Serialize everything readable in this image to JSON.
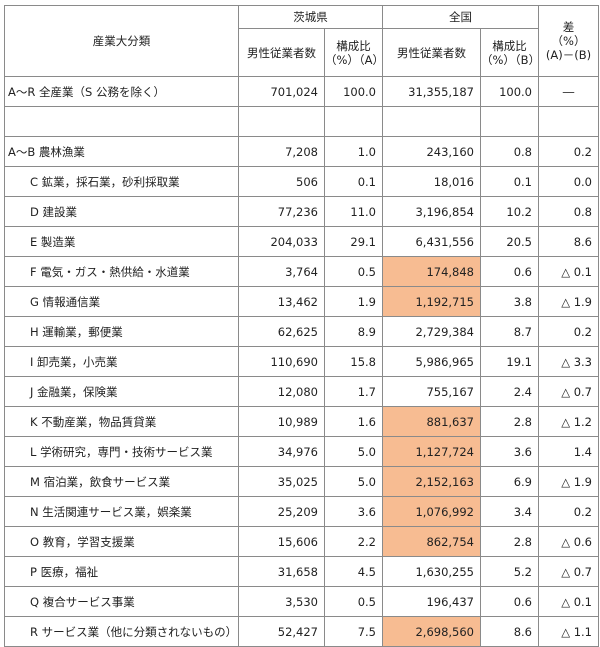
{
  "header": {
    "industry_col": "産業大分類",
    "group_ibaraki": "茨城県",
    "group_national": "全国",
    "diff": "差\n（%）\n(A)－(B)",
    "workers_ibaraki": "男性従業者数",
    "ratio_ibaraki": "構成比\n（%）（A）",
    "workers_national": "男性従業者数",
    "ratio_national": "構成比\n（%）（B）"
  },
  "highlight_color": "#f7bc92",
  "rows": [
    {
      "label": "A～R 全産業（S 公務を除く）",
      "ib_workers": "701,024",
      "ib_ratio": "100.0",
      "nat_workers": "31,355,187",
      "nat_ratio": "100.0",
      "diff": "―",
      "highlight": false
    },
    {
      "label": "A～B 農林漁業",
      "ib_workers": "7,208",
      "ib_ratio": "1.0",
      "nat_workers": "243,160",
      "nat_ratio": "0.8",
      "diff": "0.2",
      "highlight": false
    },
    {
      "label": "C 鉱業，採石業，砂利採取業",
      "ib_workers": "506",
      "ib_ratio": "0.1",
      "nat_workers": "18,016",
      "nat_ratio": "0.1",
      "diff": "0.0",
      "highlight": false
    },
    {
      "label": "D 建設業",
      "ib_workers": "77,236",
      "ib_ratio": "11.0",
      "nat_workers": "3,196,854",
      "nat_ratio": "10.2",
      "diff": "0.8",
      "highlight": false
    },
    {
      "label": "E 製造業",
      "ib_workers": "204,033",
      "ib_ratio": "29.1",
      "nat_workers": "6,431,556",
      "nat_ratio": "20.5",
      "diff": "8.6",
      "highlight": false
    },
    {
      "label": "F 電気・ガス・熱供給・水道業",
      "ib_workers": "3,764",
      "ib_ratio": "0.5",
      "nat_workers": "174,848",
      "nat_ratio": "0.6",
      "diff": "△ 0.1",
      "highlight": true
    },
    {
      "label": "G 情報通信業",
      "ib_workers": "13,462",
      "ib_ratio": "1.9",
      "nat_workers": "1,192,715",
      "nat_ratio": "3.8",
      "diff": "△ 1.9",
      "highlight": true
    },
    {
      "label": "H 運輸業，郵便業",
      "ib_workers": "62,625",
      "ib_ratio": "8.9",
      "nat_workers": "2,729,384",
      "nat_ratio": "8.7",
      "diff": "0.2",
      "highlight": false
    },
    {
      "label": "I 卸売業，小売業",
      "ib_workers": "110,690",
      "ib_ratio": "15.8",
      "nat_workers": "5,986,965",
      "nat_ratio": "19.1",
      "diff": "△ 3.3",
      "highlight": false
    },
    {
      "label": "J 金融業，保険業",
      "ib_workers": "12,080",
      "ib_ratio": "1.7",
      "nat_workers": "755,167",
      "nat_ratio": "2.4",
      "diff": "△ 0.7",
      "highlight": false
    },
    {
      "label": "K 不動産業，物品賃貸業",
      "ib_workers": "10,989",
      "ib_ratio": "1.6",
      "nat_workers": "881,637",
      "nat_ratio": "2.8",
      "diff": "△ 1.2",
      "highlight": true
    },
    {
      "label": "L 学術研究，専門・技術サービス業",
      "ib_workers": "34,976",
      "ib_ratio": "5.0",
      "nat_workers": "1,127,724",
      "nat_ratio": "3.6",
      "diff": "1.4",
      "highlight": true
    },
    {
      "label": "M 宿泊業，飲食サービス業",
      "ib_workers": "35,025",
      "ib_ratio": "5.0",
      "nat_workers": "2,152,163",
      "nat_ratio": "6.9",
      "diff": "△ 1.9",
      "highlight": true
    },
    {
      "label": "N 生活関連サービス業，娯楽業",
      "ib_workers": "25,209",
      "ib_ratio": "3.6",
      "nat_workers": "1,076,992",
      "nat_ratio": "3.4",
      "diff": "0.2",
      "highlight": true
    },
    {
      "label": "O 教育，学習支援業",
      "ib_workers": "15,606",
      "ib_ratio": "2.2",
      "nat_workers": "862,754",
      "nat_ratio": "2.8",
      "diff": "△ 0.6",
      "highlight": true
    },
    {
      "label": "P 医療，福祉",
      "ib_workers": "31,658",
      "ib_ratio": "4.5",
      "nat_workers": "1,630,255",
      "nat_ratio": "5.2",
      "diff": "△ 0.7",
      "highlight": false
    },
    {
      "label": "Q 複合サービス事業",
      "ib_workers": "3,530",
      "ib_ratio": "0.5",
      "nat_workers": "196,437",
      "nat_ratio": "0.6",
      "diff": "△ 0.1",
      "highlight": false
    },
    {
      "label": "R サービス業（他に分類されないもの）",
      "ib_workers": "52,427",
      "ib_ratio": "7.5",
      "nat_workers": "2,698,560",
      "nat_ratio": "8.6",
      "diff": "△ 1.1",
      "highlight": true
    }
  ]
}
